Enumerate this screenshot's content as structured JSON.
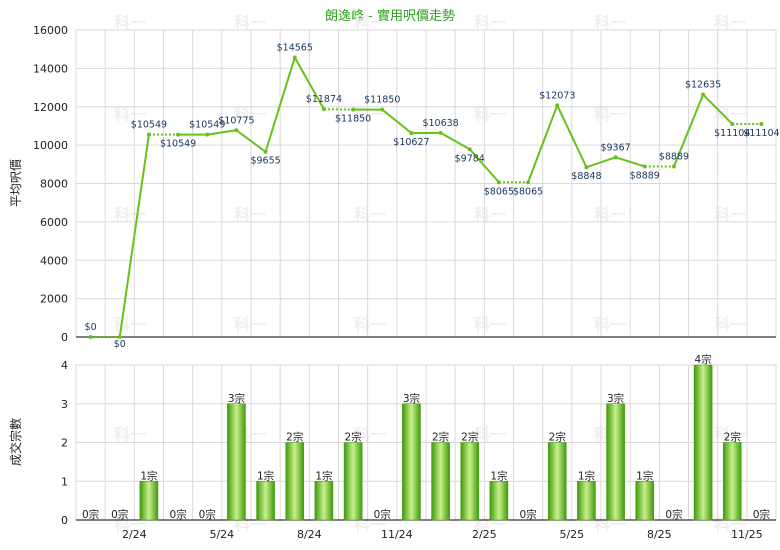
{
  "title": "朗逸峰 - 實用呎價走勢",
  "watermark": "科一",
  "colors": {
    "line": "#66c21a",
    "bar_dark": "#3f9a0c",
    "bar_light": "#c9f08c",
    "title": "#2e9e1f",
    "label": "#17375e"
  },
  "chart_data": [
    {
      "type": "line",
      "ylabel": "平均呎價",
      "ylim": [
        0,
        16000
      ],
      "yticks": [
        0,
        2000,
        4000,
        6000,
        8000,
        10000,
        12000,
        14000,
        16000
      ],
      "months": 24,
      "values": [
        0,
        0,
        10549,
        10549,
        10549,
        10775,
        9655,
        14565,
        11874,
        11850,
        11850,
        10627,
        10638,
        9784,
        8065,
        8065,
        12073,
        8848,
        9367,
        8889,
        8889,
        12635,
        11104,
        11104
      ],
      "labels": [
        "$0",
        "$0",
        "$10549",
        "$10549",
        "$10549",
        "$10775",
        "$9655",
        "$14565",
        "$11874",
        "$11850",
        "$11850",
        "$10627",
        "$10638",
        "$9784",
        "$8065",
        "$8065",
        "$12073",
        "$8848",
        "$9367",
        "$8889",
        "$8889",
        "$12635",
        "$11104",
        "$11104"
      ],
      "has_data": [
        true,
        false,
        true,
        false,
        true,
        true,
        true,
        true,
        true,
        false,
        true,
        true,
        true,
        true,
        true,
        false,
        true,
        true,
        true,
        true,
        false,
        true,
        true,
        false
      ],
      "grid": true
    },
    {
      "type": "bar",
      "ylabel": "成交宗數",
      "ylim": [
        0,
        4
      ],
      "yticks": [
        0,
        1,
        2,
        3,
        4
      ],
      "x_tick_labels": [
        "2/24",
        "5/24",
        "8/24",
        "11/24",
        "2/25",
        "5/25",
        "8/25",
        "11/25"
      ],
      "x_tick_index": [
        2,
        5,
        8,
        11,
        14,
        17,
        20,
        23
      ],
      "values": [
        0,
        0,
        1,
        0,
        0,
        3,
        1,
        2,
        1,
        2,
        0,
        3,
        2,
        2,
        1,
        0,
        2,
        1,
        3,
        1,
        0,
        4,
        2,
        0
      ],
      "labels": [
        "0宗",
        "0宗",
        "1宗",
        "0宗",
        "0宗",
        "3宗",
        "1宗",
        "2宗",
        "1宗",
        "2宗",
        "0宗",
        "3宗",
        "2宗",
        "2宗",
        "1宗",
        "0宗",
        "2宗",
        "1宗",
        "3宗",
        "1宗",
        "0宗",
        "4宗",
        "2宗",
        "0宗"
      ],
      "grid": true
    }
  ]
}
